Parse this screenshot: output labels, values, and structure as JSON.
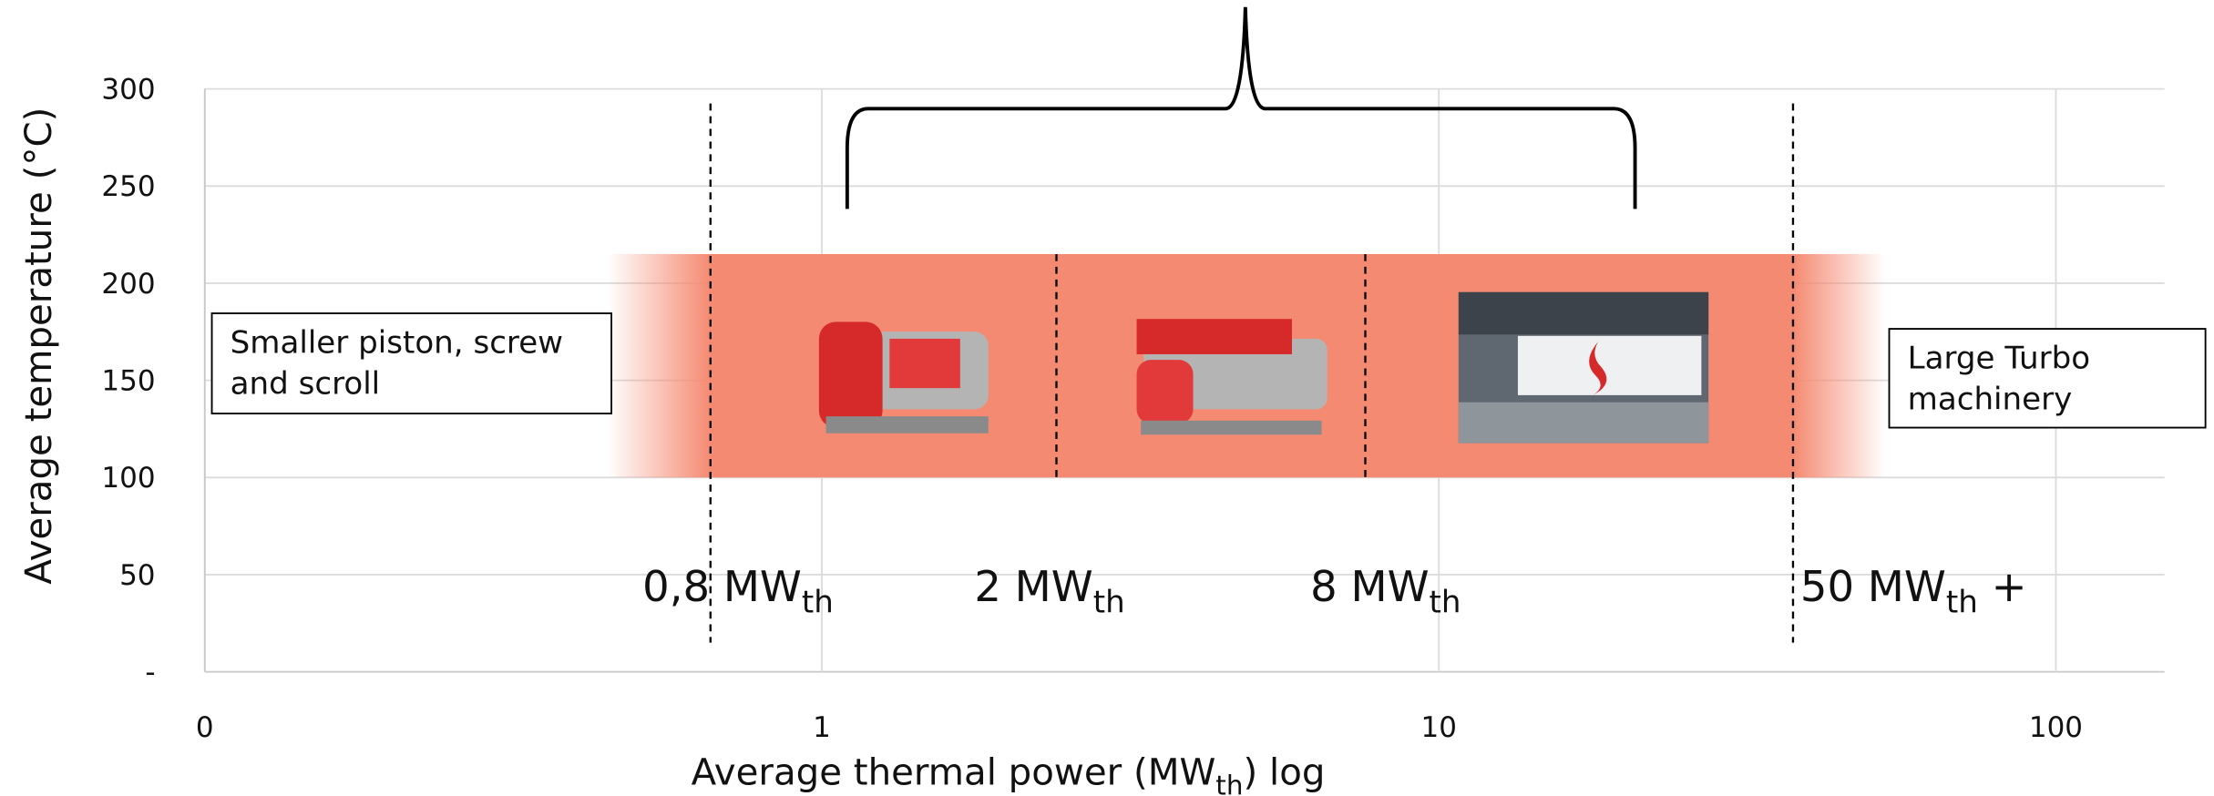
{
  "chart_data": {
    "type": "range-band",
    "x_label": {
      "text": "Average thermal power (MW",
      "sub": "th",
      "suffix": ") log"
    },
    "y_label": "Average temperature (°C)",
    "xscale": "log",
    "xlim": [
      0.1,
      150
    ],
    "xticks": [
      {
        "value": 0.1,
        "label": "0"
      },
      1,
      10,
      100
    ],
    "ylim": [
      0,
      300
    ],
    "yticks": [
      {
        "value": 0,
        "label": "-"
      },
      50,
      100,
      150,
      200,
      250,
      300
    ],
    "grid": true,
    "band": {
      "x": [
        0.45,
        53
      ],
      "y": [
        100,
        215
      ],
      "color": "#f58a72"
    },
    "dividers": [
      0.66,
      2.4,
      7.6,
      37.5
    ],
    "labels": [
      {
        "text": "0,8 MW",
        "sub": "th"
      },
      {
        "text": "2 MW",
        "sub": "th"
      },
      {
        "text": "8 MW",
        "sub": "th"
      },
      {
        "text": "50 MW",
        "sub": "th",
        "suffix": " +"
      }
    ],
    "left_box": [
      "Smaller piston, screw",
      "and scroll"
    ],
    "right_box": [
      "Large Turbo",
      "machinery"
    ]
  }
}
